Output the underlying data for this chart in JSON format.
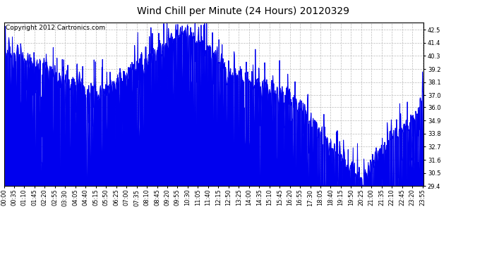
{
  "title": "Wind Chill per Minute (24 Hours) 20120329",
  "copyright_text": "Copyright 2012 Cartronics.com",
  "line_color": "#0000ee",
  "bg_color": "#ffffff",
  "plot_bg_color": "#ffffff",
  "grid_color": "#bbbbbb",
  "yticks": [
    29.4,
    30.5,
    31.6,
    32.7,
    33.8,
    34.9,
    36.0,
    37.0,
    38.1,
    39.2,
    40.3,
    41.4,
    42.5
  ],
  "ylim": [
    29.4,
    43.1
  ],
  "xtick_labels": [
    "00:00",
    "00:35",
    "01:10",
    "01:45",
    "02:20",
    "02:55",
    "03:30",
    "04:05",
    "04:40",
    "05:15",
    "05:50",
    "06:25",
    "07:00",
    "07:35",
    "08:10",
    "08:45",
    "09:20",
    "09:55",
    "10:30",
    "11:05",
    "11:40",
    "12:15",
    "12:50",
    "13:25",
    "14:00",
    "14:35",
    "15:10",
    "15:45",
    "16:20",
    "16:55",
    "17:30",
    "18:05",
    "18:40",
    "19:15",
    "19:50",
    "20:25",
    "21:00",
    "21:35",
    "22:10",
    "22:45",
    "23:20",
    "23:55"
  ],
  "title_fontsize": 10,
  "copyright_fontsize": 6.5,
  "tick_fontsize": 6,
  "line_width": 0.7
}
